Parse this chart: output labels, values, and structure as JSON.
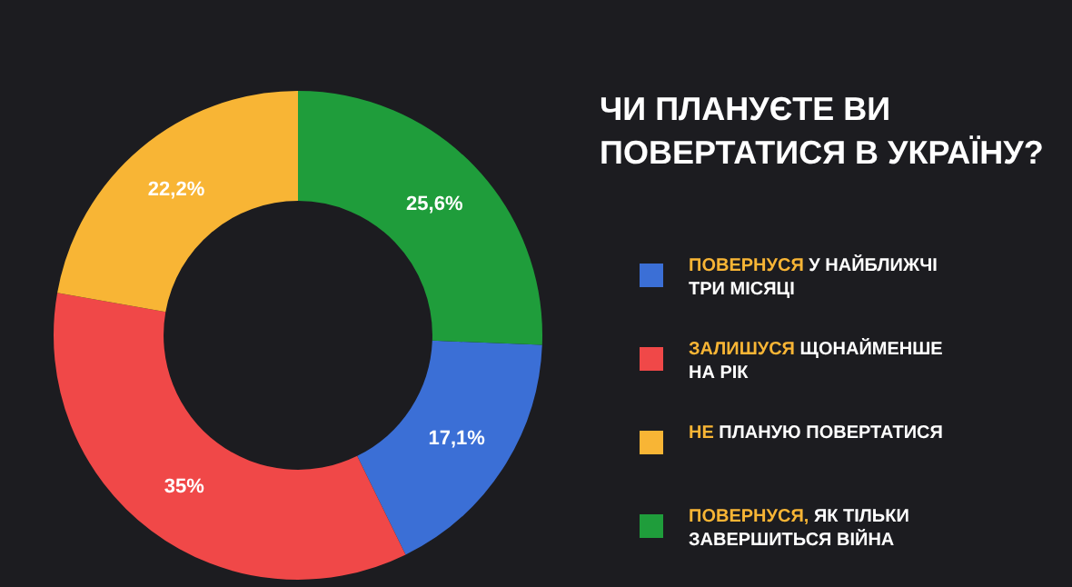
{
  "chart_data": {
    "type": "donut",
    "title": "ЧИ ПЛАНУЄТЕ ВИ ПОВЕРТАТИСЯ В УКРАЇНУ?",
    "categories": [
      "ПОВЕРНУСЯ У НАЙБЛИЖЧІ ТРИ МІСЯЦІ",
      "ЗАЛИШУСЯ ЩОНАЙМЕНШЕ НА РІК",
      "НЕ ПЛАНУЮ ПОВЕРТАТИСЯ",
      "ПОВЕРНУСЯ, ЯК ТІЛЬКИ ЗАВЕРШИТЬСЯ ВІЙНА"
    ],
    "values": [
      17.1,
      35,
      22.2,
      25.6
    ],
    "colors": [
      "#3b6fd6",
      "#f04848",
      "#f8b535",
      "#1f9d3b"
    ],
    "value_labels": [
      "17,1%",
      "35%",
      "22,2%",
      "25,6%"
    ],
    "legend": "right"
  }
}
